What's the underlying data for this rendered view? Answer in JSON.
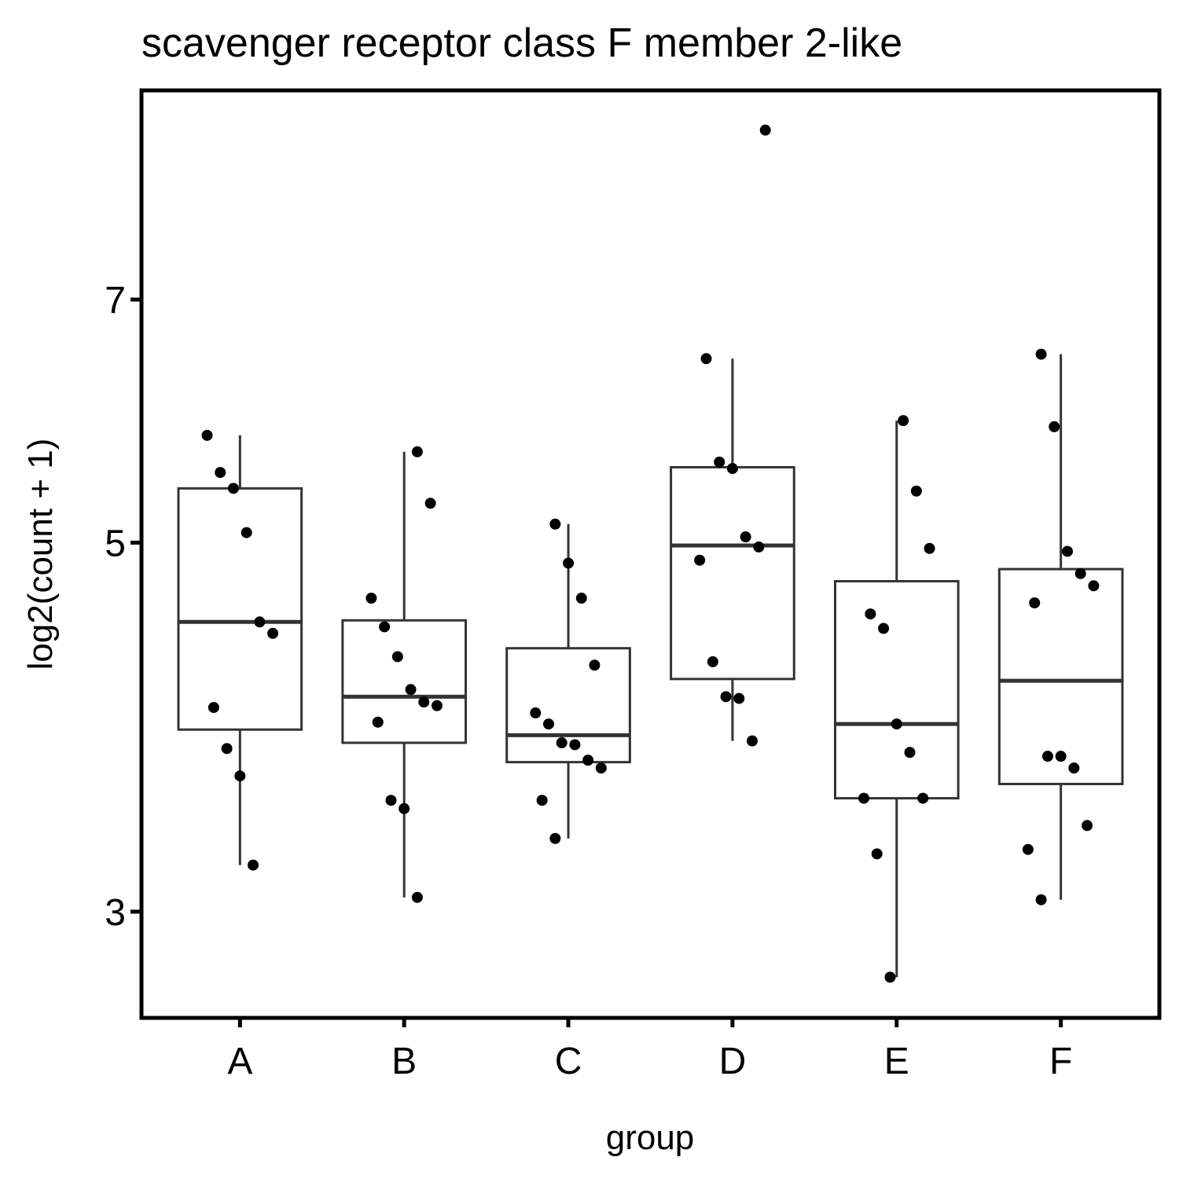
{
  "chart_data": {
    "type": "boxplot",
    "title": "scavenger receptor class F member 2-like",
    "x_label": "group",
    "y_label": "log2(count + 1)",
    "yscale": "log",
    "ylim": [
      2.59,
      9.35
    ],
    "yticks": [
      3,
      5,
      7
    ],
    "grid": false,
    "categories": [
      "A",
      "B",
      "C",
      "D",
      "E",
      "F"
    ],
    "boxes": [
      {
        "whislo": 3.2,
        "q1": 3.86,
        "med": 4.48,
        "q3": 5.39,
        "whishi": 5.8
      },
      {
        "whislo": 3.06,
        "q1": 3.79,
        "med": 4.04,
        "q3": 4.49,
        "whishi": 5.67
      },
      {
        "whislo": 3.32,
        "q1": 3.69,
        "med": 3.83,
        "q3": 4.32,
        "whishi": 5.13
      },
      {
        "whislo": 3.8,
        "q1": 4.14,
        "med": 4.98,
        "q3": 5.55,
        "whishi": 6.45
      },
      {
        "whislo": 2.74,
        "q1": 3.51,
        "med": 3.89,
        "q3": 4.74,
        "whishi": 5.92
      },
      {
        "whislo": 3.05,
        "q1": 3.58,
        "med": 4.13,
        "q3": 4.82,
        "whishi": 6.49
      }
    ],
    "points": [
      [
        5.8,
        5.51,
        5.39,
        5.07,
        4.48,
        4.41,
        3.98,
        3.76,
        3.62,
        3.2
      ],
      [
        5.67,
        5.28,
        4.63,
        4.45,
        4.27,
        4.08,
        4.01,
        3.99,
        3.9,
        3.5,
        3.46,
        3.06
      ],
      [
        5.13,
        4.86,
        4.63,
        4.22,
        3.95,
        3.89,
        3.79,
        3.78,
        3.7,
        3.66,
        3.5,
        3.32
      ],
      [
        8.85,
        6.45,
        5.59,
        5.54,
        5.04,
        4.97,
        4.88,
        4.24,
        4.04,
        4.03,
        3.8
      ],
      [
        5.92,
        5.37,
        4.96,
        4.53,
        4.44,
        3.89,
        3.74,
        3.51,
        3.51,
        3.25,
        2.74
      ],
      [
        6.49,
        5.87,
        4.94,
        4.79,
        4.71,
        4.6,
        3.72,
        3.72,
        3.66,
        3.38,
        3.27,
        3.05
      ]
    ],
    "box_color": "#333333",
    "point_color": "#000000"
  }
}
